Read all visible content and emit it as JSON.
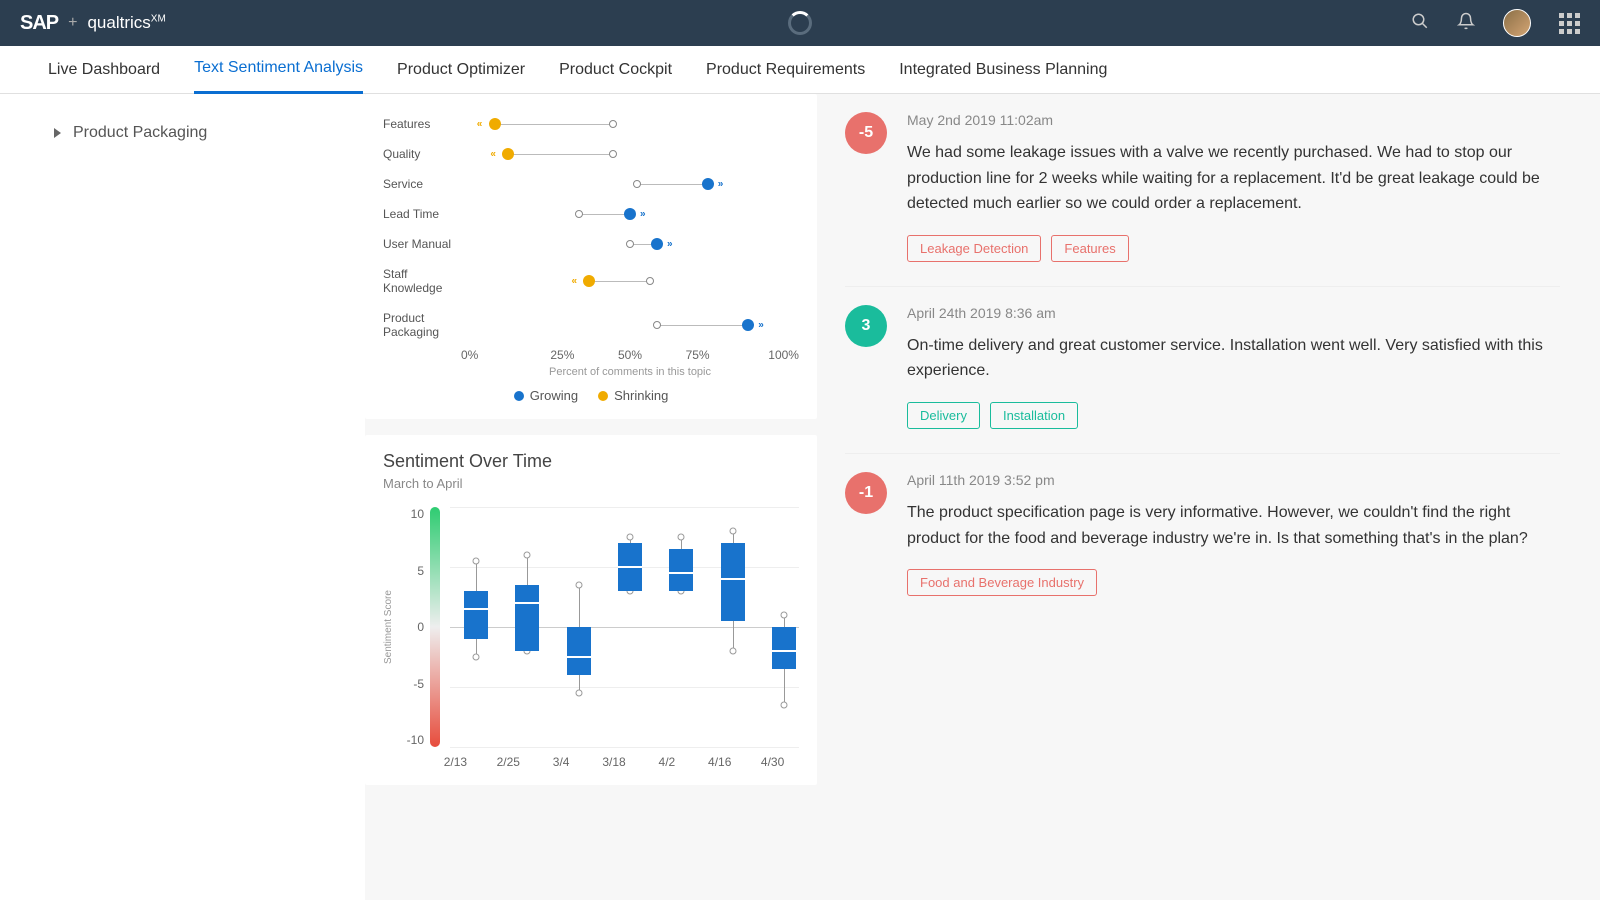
{
  "header": {
    "brand1": "SAP",
    "plus": "+",
    "brand2": "qualtrics",
    "brand2_sup": "XM"
  },
  "tabs": [
    {
      "label": "Live Dashboard",
      "active": false
    },
    {
      "label": "Text Sentiment Analysis",
      "active": true
    },
    {
      "label": "Product Optimizer",
      "active": false
    },
    {
      "label": "Product Cockpit",
      "active": false
    },
    {
      "label": "Product Requirements",
      "active": false
    },
    {
      "label": "Integrated Business Planning",
      "active": false
    }
  ],
  "sidebar": {
    "item": "Product Packaging"
  },
  "dotchart": {
    "rows": [
      {
        "label": "Features",
        "type": "shrink",
        "open": 45,
        "filled": 10,
        "tall": false
      },
      {
        "label": "Quality",
        "type": "shrink",
        "open": 45,
        "filled": 14,
        "tall": false
      },
      {
        "label": "Service",
        "type": "grow",
        "open": 52,
        "filled": 73,
        "tall": false
      },
      {
        "label": "Lead Time",
        "type": "grow",
        "open": 35,
        "filled": 50,
        "tall": false
      },
      {
        "label": "User Manual",
        "type": "grow",
        "open": 50,
        "filled": 58,
        "tall": false
      },
      {
        "label": "Staff Knowledge",
        "type": "shrink",
        "open": 56,
        "filled": 38,
        "tall": true
      },
      {
        "label": "Product Packaging",
        "type": "grow",
        "open": 58,
        "filled": 85,
        "tall": true
      }
    ],
    "xaxis": [
      "0%",
      "25%",
      "50%",
      "75%",
      "100%"
    ],
    "xaxis_label": "Percent of comments in this topic",
    "legend": [
      {
        "label": "Growing",
        "color": "#1873cc"
      },
      {
        "label": "Shrinking",
        "color": "#f0ab00"
      }
    ]
  },
  "sentiment": {
    "title": "Sentiment Over Time",
    "subtitle": "March to April",
    "yaxis_label": "Sentiment Score",
    "yticks": [
      "10",
      "5",
      "0",
      "-5",
      "-10"
    ],
    "ymin": -10,
    "ymax": 10,
    "box_color": "#1873cc",
    "boxes": [
      {
        "x": "2/13",
        "q1": -1,
        "q3": 3,
        "median": 1.5,
        "wlow": -2.5,
        "whigh": 5.5
      },
      {
        "x": "2/25",
        "q1": -2,
        "q3": 3.5,
        "median": 2,
        "wlow": -2,
        "whigh": 6
      },
      {
        "x": "3/4",
        "q1": -4,
        "q3": 0,
        "median": -2.5,
        "wlow": -5.5,
        "whigh": 3.5
      },
      {
        "x": "3/18",
        "q1": 3,
        "q3": 7,
        "median": 5,
        "wlow": 3,
        "whigh": 7.5
      },
      {
        "x": "4/2",
        "q1": 3,
        "q3": 6.5,
        "median": 4.5,
        "wlow": 3,
        "whigh": 7.5
      },
      {
        "x": "4/16",
        "q1": 0.5,
        "q3": 7,
        "median": 4,
        "wlow": -2,
        "whigh": 8
      },
      {
        "x": "4/30",
        "q1": -3.5,
        "q3": 0,
        "median": -2,
        "wlow": -6.5,
        "whigh": 1
      }
    ]
  },
  "comments": [
    {
      "score": "-5",
      "score_class": "neg",
      "date": "May 2nd 2019 11:02am",
      "text": "We had some leakage issues with a valve we recently purchased. We had to stop our production line for 2 weeks while waiting for a replacement. It'd be great leakage could be detected much earlier so we could order a replacement.",
      "tags": [
        {
          "label": "Leakage Detection",
          "class": "red"
        },
        {
          "label": "Features",
          "class": "red"
        }
      ]
    },
    {
      "score": "3",
      "score_class": "pos",
      "date": "April 24th 2019 8:36 am",
      "text": "On-time delivery and great customer service. Installation went well. Very satisfied with this experience.",
      "tags": [
        {
          "label": "Delivery",
          "class": "teal"
        },
        {
          "label": "Installation",
          "class": "teal"
        }
      ]
    },
    {
      "score": "-1",
      "score_class": "neg",
      "date": "April 11th 2019 3:52 pm",
      "text": "The product specification page is very informative. However, we couldn't find the right product for the food and beverage industry we're in. Is that something that's in the plan?",
      "tags": [
        {
          "label": "Food and Beverage Industry",
          "class": "red"
        }
      ]
    }
  ]
}
